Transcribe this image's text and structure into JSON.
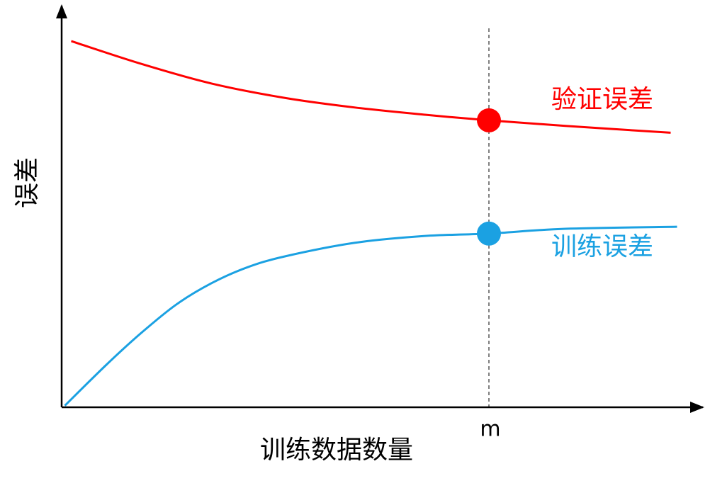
{
  "chart_data": {
    "type": "line",
    "x_label": "训练数据数量",
    "y_label": "误差",
    "xlim": [
      0,
      100
    ],
    "ylim": [
      0,
      100
    ],
    "series": [
      {
        "name": "验证误差",
        "color": "#ff0000",
        "x": [
          1.5,
          12.5,
          23.5,
          35,
          46,
          57,
          67,
          79,
          95.5
        ],
        "values": [
          91.5,
          85.8,
          80.9,
          77.3,
          74.9,
          73.1,
          71.7,
          70.3,
          68.6
        ]
      },
      {
        "name": "训练误差",
        "color": "#1ba1e2",
        "x": [
          0.5,
          7,
          12.5,
          18,
          23.5,
          29,
          35,
          46,
          57,
          67,
          79,
          96.5
        ],
        "values": [
          0.4,
          10.6,
          18.6,
          25.7,
          31.0,
          34.9,
          37.7,
          41.1,
          42.8,
          43.4,
          44.6,
          45.1
        ]
      }
    ],
    "markers": [
      {
        "x": 67,
        "y": 71.7,
        "color": "#ff0000"
      },
      {
        "x": 67,
        "y": 43.4,
        "color": "#1ba1e2"
      }
    ],
    "vline": {
      "x": 67,
      "label": "m"
    }
  }
}
